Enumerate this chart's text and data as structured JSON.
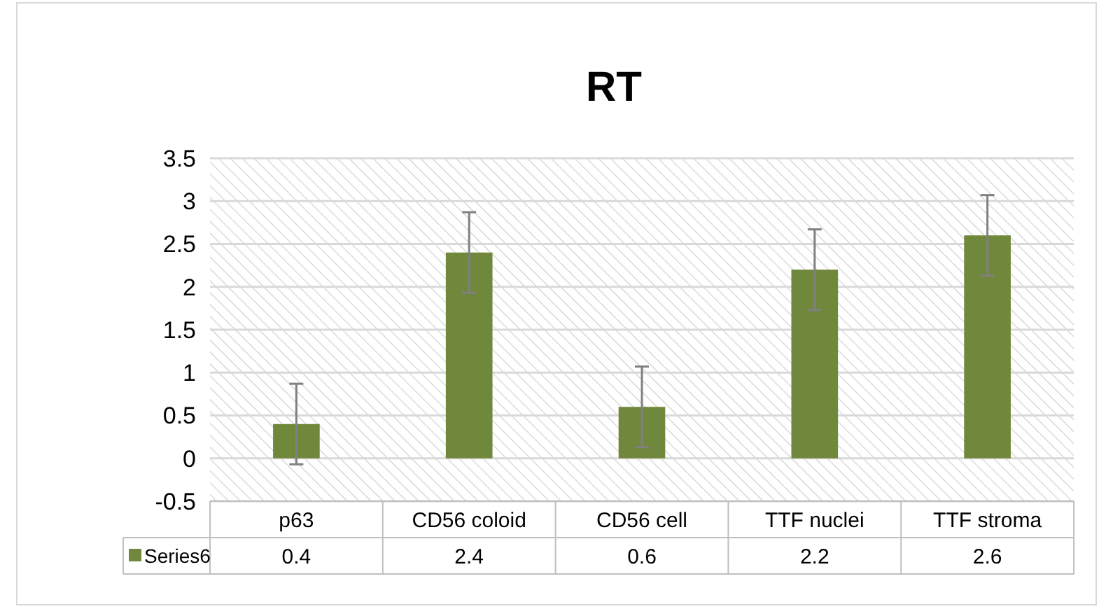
{
  "chart_data": {
    "type": "bar",
    "title": "RT",
    "categories": [
      "p63",
      "CD56 coloid",
      "CD56 cell",
      "TTF nuclei",
      "TTF stroma"
    ],
    "series": [
      {
        "name": "Series6",
        "color": "#70883b",
        "values": [
          0.4,
          2.4,
          0.6,
          2.2,
          2.6
        ],
        "errors": [
          0.47,
          0.47,
          0.47,
          0.47,
          0.47
        ]
      }
    ],
    "ylim": [
      -0.5,
      3.5
    ],
    "yticks": [
      -0.5,
      0,
      0.5,
      1,
      1.5,
      2,
      2.5,
      3,
      3.5
    ],
    "grid": "y",
    "data_labels": true,
    "legend": "bottom"
  }
}
